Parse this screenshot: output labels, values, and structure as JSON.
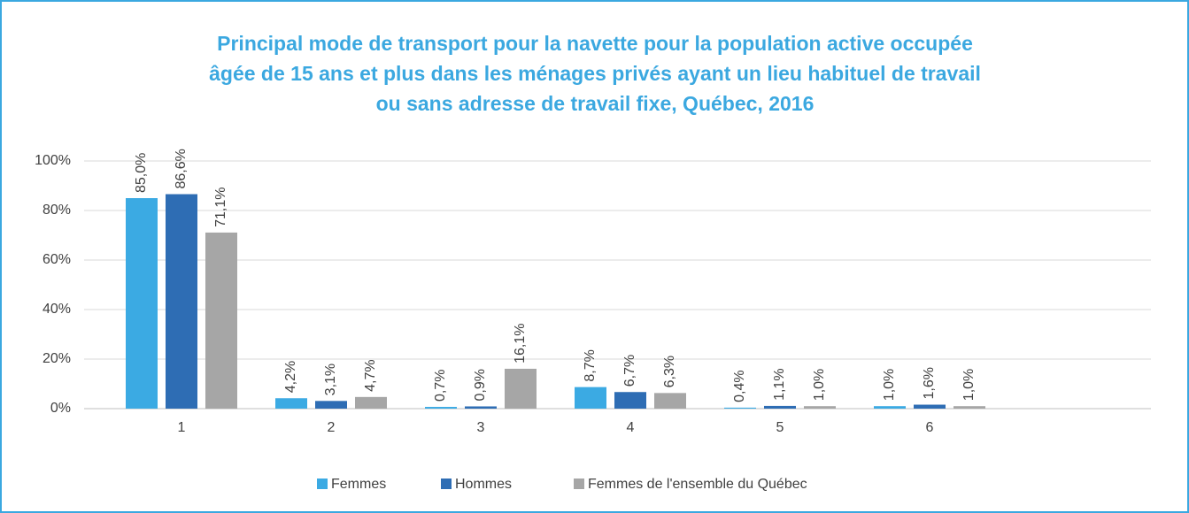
{
  "chart_data": {
    "type": "bar",
    "title": [
      "Principal mode de transport pour la navette pour la population active occupée",
      "âgée de 15 ans et plus dans les ménages privés ayant un lieu habituel de travail",
      "ou sans adresse de travail fixe, Québec, 2016"
    ],
    "categories": [
      "1",
      "2",
      "3",
      "4",
      "5",
      "6"
    ],
    "series": [
      {
        "name": "Femmes",
        "color": "#3baae3",
        "values": [
          85.0,
          4.2,
          0.7,
          8.7,
          0.4,
          1.0
        ],
        "value_labels": [
          "85,0%",
          "4,2%",
          "0,7%",
          "8,7%",
          "0,4%",
          "1,0%"
        ]
      },
      {
        "name": "Hommes",
        "color": "#2e6db4",
        "values": [
          86.6,
          3.1,
          0.9,
          6.7,
          1.1,
          1.6
        ],
        "value_labels": [
          "86,6%",
          "3,1%",
          "0,9%",
          "6,7%",
          "1,1%",
          "1,6%"
        ]
      },
      {
        "name": "Femmes de l'ensemble du Québec",
        "color": "#a6a6a6",
        "values": [
          71.1,
          4.7,
          16.1,
          6.3,
          1.0,
          1.0
        ],
        "value_labels": [
          "71,1%",
          "4,7%",
          "16,1%",
          "6,3%",
          "1,0%",
          "1,0%"
        ]
      }
    ],
    "ylim": [
      0,
      100
    ],
    "yticks": [
      {
        "value": 0,
        "label": "0%"
      },
      {
        "value": 20,
        "label": "20%"
      },
      {
        "value": 40,
        "label": "40%"
      },
      {
        "value": 60,
        "label": "60%"
      },
      {
        "value": 80,
        "label": "80%"
      },
      {
        "value": 100,
        "label": "100%"
      }
    ],
    "grid": true,
    "legend": "bottom"
  }
}
